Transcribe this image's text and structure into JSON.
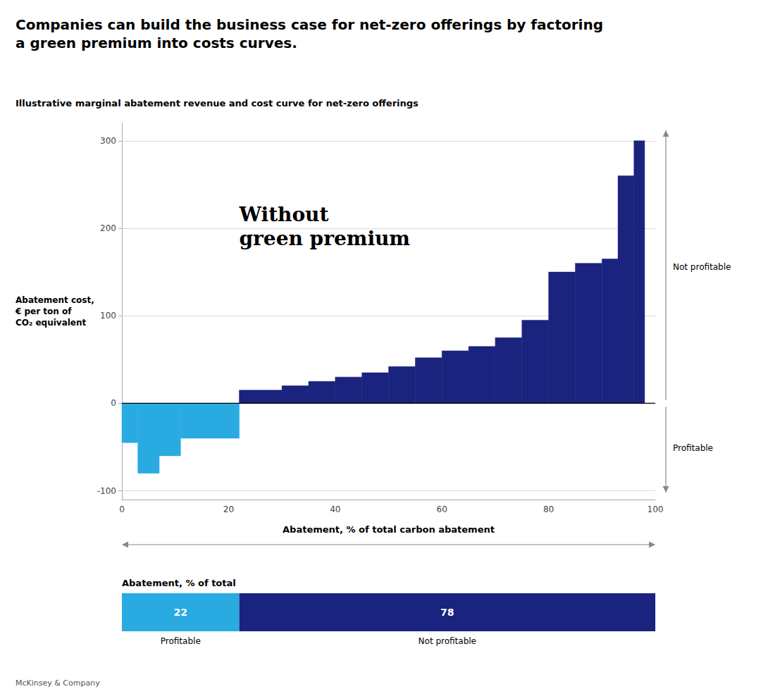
{
  "chart_data": [
    {
      "type": "bar",
      "title": "Companies can build the business case for net-zero offerings by factoring\na green premium into costs curves.",
      "subtitle": "Illustrative marginal abatement revenue and cost curve for net-zero offerings",
      "annotation": "Without\ngreen premium",
      "ylabel": "Abatement cost,\n€ per ton of\nCO₂ equivalent",
      "xlabel": "Abatement, % of total carbon abatement",
      "arrow_labels": {
        "up": "Not profitable",
        "down": "Profitable"
      },
      "footer": "McKinsey & Company",
      "x": [
        0,
        3,
        7,
        11,
        22,
        30,
        35,
        40,
        45,
        50,
        55,
        60,
        65,
        70,
        75,
        80,
        85,
        90,
        93,
        96
      ],
      "widths": [
        3,
        4,
        4,
        11,
        8,
        5,
        5,
        5,
        5,
        5,
        5,
        5,
        5,
        5,
        5,
        5,
        5,
        3,
        3,
        2
      ],
      "values": [
        -45,
        -80,
        -60,
        -40,
        15,
        20,
        25,
        30,
        35,
        42,
        52,
        60,
        65,
        75,
        95,
        150,
        160,
        165,
        260,
        300
      ],
      "colors": [
        "#29ABE2",
        "#29ABE2",
        "#29ABE2",
        "#29ABE2",
        "#1A237E",
        "#1A237E",
        "#1A237E",
        "#1A237E",
        "#1A237E",
        "#1A237E",
        "#1A237E",
        "#1A237E",
        "#1A237E",
        "#1A237E",
        "#1A237E",
        "#1A237E",
        "#1A237E",
        "#1A237E",
        "#1A237E",
        "#1A237E"
      ],
      "xlim": [
        0,
        100
      ],
      "xticks": [
        0,
        20,
        40,
        60,
        80,
        100
      ],
      "ylim": [
        -110,
        320
      ],
      "yticks": [
        -100,
        0,
        100,
        200,
        300
      ],
      "grid": true
    },
    {
      "type": "bar",
      "title": "Abatement, % of total",
      "orientation": "horizontal",
      "stacked": true,
      "data_labels": true,
      "tick_labels": false,
      "xlim": [
        0,
        100
      ],
      "series": [
        {
          "name": "Profitable",
          "color": "#29ABE2",
          "values": [
            22
          ]
        },
        {
          "name": "Not profitable",
          "color": "#1A237E",
          "values": [
            78
          ]
        }
      ]
    }
  ]
}
